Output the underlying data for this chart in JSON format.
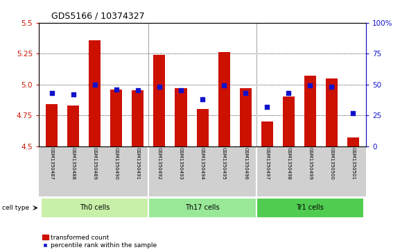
{
  "title": "GDS5166 / 10374327",
  "samples": [
    "GSM1350487",
    "GSM1350488",
    "GSM1350489",
    "GSM1350490",
    "GSM1350491",
    "GSM1350492",
    "GSM1350493",
    "GSM1350494",
    "GSM1350495",
    "GSM1350496",
    "GSM1350497",
    "GSM1350498",
    "GSM1350499",
    "GSM1350500",
    "GSM1350501"
  ],
  "red_values": [
    4.84,
    4.83,
    5.36,
    4.96,
    4.95,
    5.24,
    4.97,
    4.8,
    5.26,
    4.97,
    4.7,
    4.9,
    5.07,
    5.05,
    4.57
  ],
  "blue_values": [
    43,
    42,
    50,
    46,
    45,
    48,
    45,
    38,
    49,
    43,
    32,
    43,
    49,
    48,
    27
  ],
  "ylim_left": [
    4.5,
    5.5
  ],
  "ylim_right": [
    0,
    100
  ],
  "yticks_left": [
    4.5,
    4.75,
    5.0,
    5.25,
    5.5
  ],
  "yticks_right": [
    0,
    25,
    50,
    75,
    100
  ],
  "ytick_labels_right": [
    "0",
    "25",
    "50",
    "75",
    "100%"
  ],
  "groups": [
    {
      "name": "Th0 cells",
      "start": 0,
      "end": 5,
      "color": "#c8f0a8"
    },
    {
      "name": "Th17 cells",
      "start": 5,
      "end": 10,
      "color": "#98e898"
    },
    {
      "name": "Tr1 cells",
      "start": 10,
      "end": 15,
      "color": "#50cc50"
    }
  ],
  "bar_color": "#cc1100",
  "blue_color": "#1111cc",
  "base_value": 4.5,
  "bg_color": "#d0d0d0",
  "plot_bg_color": "#ffffff",
  "fig_bg_color": "#ffffff",
  "legend_items": [
    "transformed count",
    "percentile rank within the sample"
  ],
  "cell_type_label": "cell type"
}
